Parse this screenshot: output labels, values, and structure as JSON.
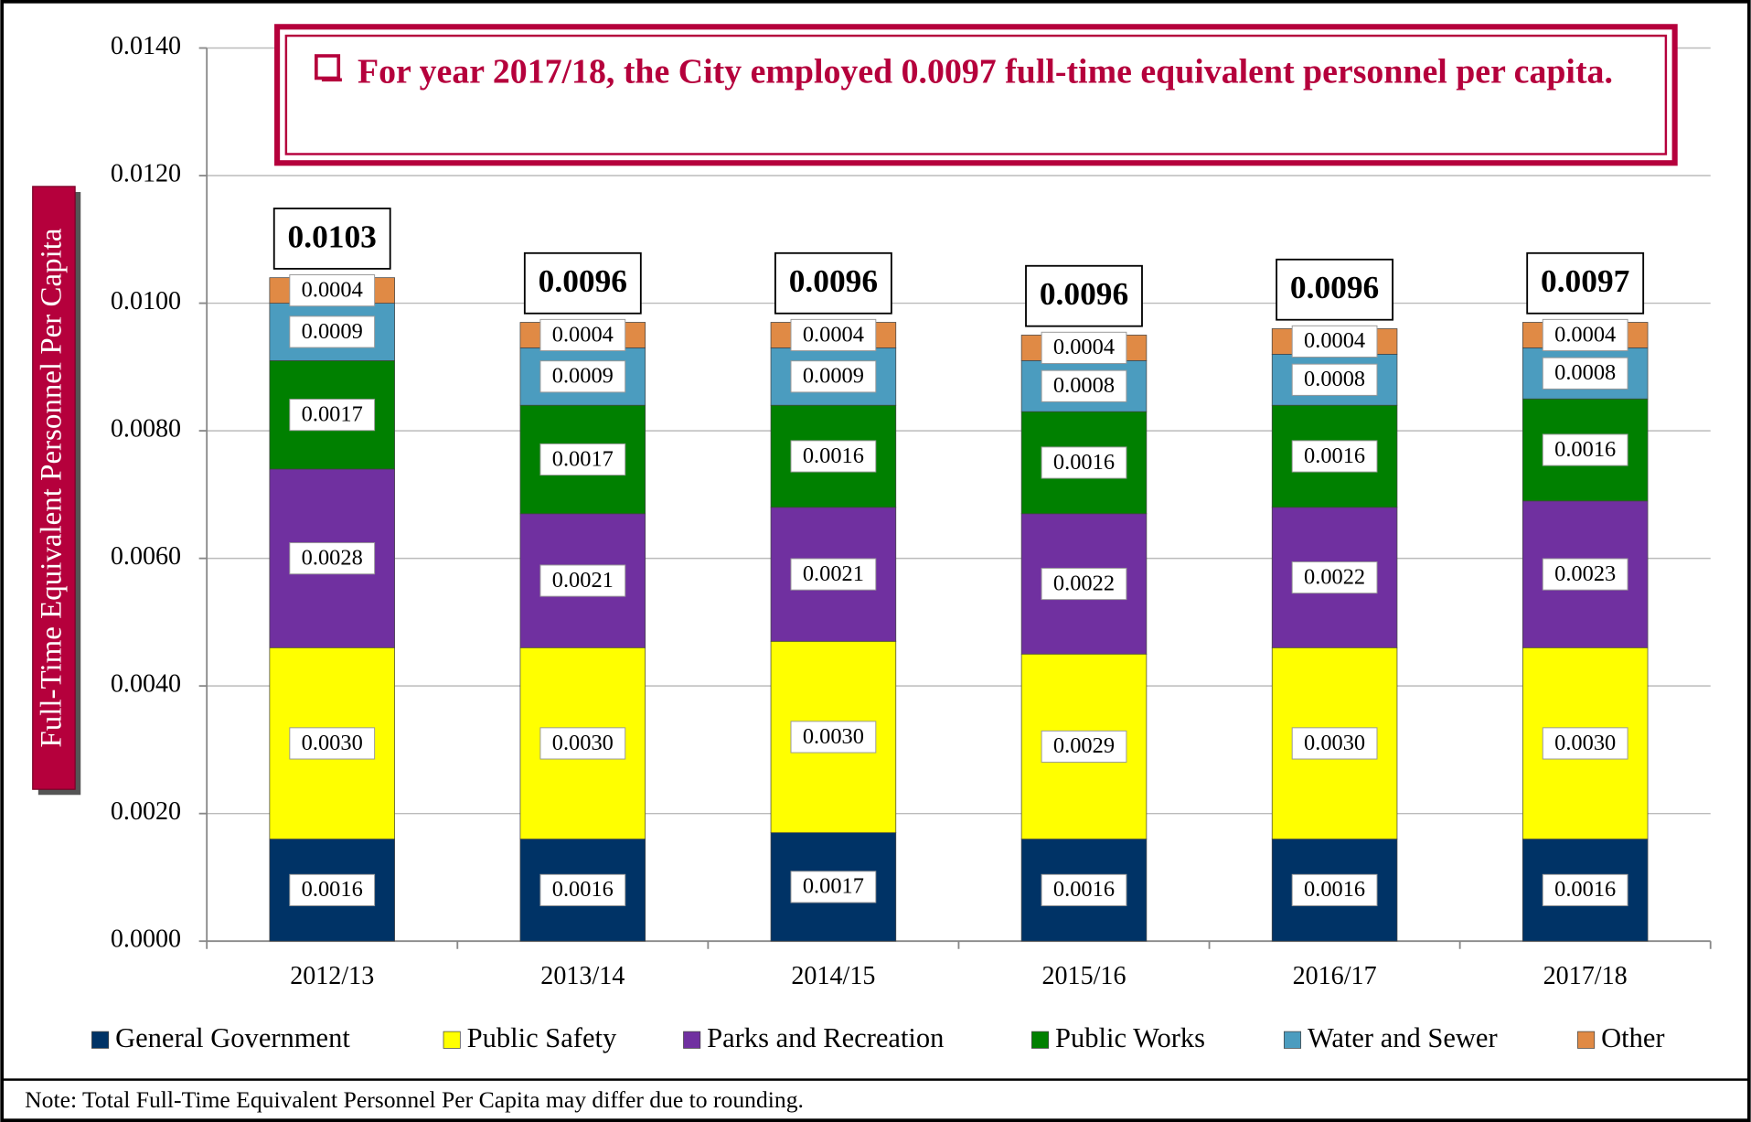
{
  "chart_data": {
    "type": "stacked_bar",
    "callout": "For year 2017/18, the City employed 0.0097 full-time equivalent personnel per capita.",
    "y_label": "Full-Time Equivalent Personnel Per Capita",
    "note": "Note: Total Full-Time Equivalent Personnel Per Capita may differ due to rounding.",
    "categories": [
      "2012/13",
      "2013/14",
      "2014/15",
      "2015/16",
      "2016/17",
      "2017/18"
    ],
    "series": [
      {
        "name": "General Government",
        "color": "#003366",
        "values": [
          0.0016,
          0.0016,
          0.0017,
          0.0016,
          0.0016,
          0.0016
        ],
        "value_labels": [
          "0.0016",
          "0.0016",
          "0.0017",
          "0.0016",
          "0.0016",
          "0.0016"
        ]
      },
      {
        "name": "Public Safety",
        "color": "#ffff00",
        "values": [
          0.003,
          0.003,
          0.003,
          0.0029,
          0.003,
          0.003
        ],
        "value_labels": [
          "0.0030",
          "0.0030",
          "0.0030",
          "0.0029",
          "0.0030",
          "0.0030"
        ]
      },
      {
        "name": "Parks and Recreation",
        "color": "#7030a0",
        "values": [
          0.0028,
          0.0021,
          0.0021,
          0.0022,
          0.0022,
          0.0023
        ],
        "value_labels": [
          "0.0028",
          "0.0021",
          "0.0021",
          "0.0022",
          "0.0022",
          "0.0023"
        ]
      },
      {
        "name": "Public Works",
        "color": "#008000",
        "values": [
          0.0017,
          0.0017,
          0.0016,
          0.0016,
          0.0016,
          0.0016
        ],
        "value_labels": [
          "0.0017",
          "0.0017",
          "0.0016",
          "0.0016",
          "0.0016",
          "0.0016"
        ]
      },
      {
        "name": "Water and Sewer",
        "color": "#4b9cbf",
        "values": [
          0.0009,
          0.0009,
          0.0009,
          0.0008,
          0.0008,
          0.0008
        ],
        "value_labels": [
          "0.0009",
          "0.0009",
          "0.0009",
          "0.0008",
          "0.0008",
          "0.0008"
        ]
      },
      {
        "name": "Other",
        "color": "#e08a45",
        "values": [
          0.0004,
          0.0004,
          0.0004,
          0.0004,
          0.0004,
          0.0004
        ],
        "value_labels": [
          "0.0004",
          "0.0004",
          "0.0004",
          "0.0004",
          "0.0004",
          "0.0004"
        ]
      }
    ],
    "totals": [
      0.0103,
      0.0096,
      0.0096,
      0.0096,
      0.0096,
      0.0097
    ],
    "ylim": [
      0,
      0.014
    ],
    "yticks": [
      {
        "value": 0,
        "label": "0.0000"
      },
      {
        "value": 0.002,
        "label": "0.0020"
      },
      {
        "value": 0.004,
        "label": "0.0040"
      },
      {
        "value": 0.006,
        "label": "0.0060"
      },
      {
        "value": 0.008,
        "label": "0.0080"
      },
      {
        "value": 0.01,
        "label": "0.0100"
      },
      {
        "value": 0.012,
        "label": "0.0120"
      },
      {
        "value": 0.014,
        "label": "0.0140"
      }
    ],
    "grid": true
  }
}
